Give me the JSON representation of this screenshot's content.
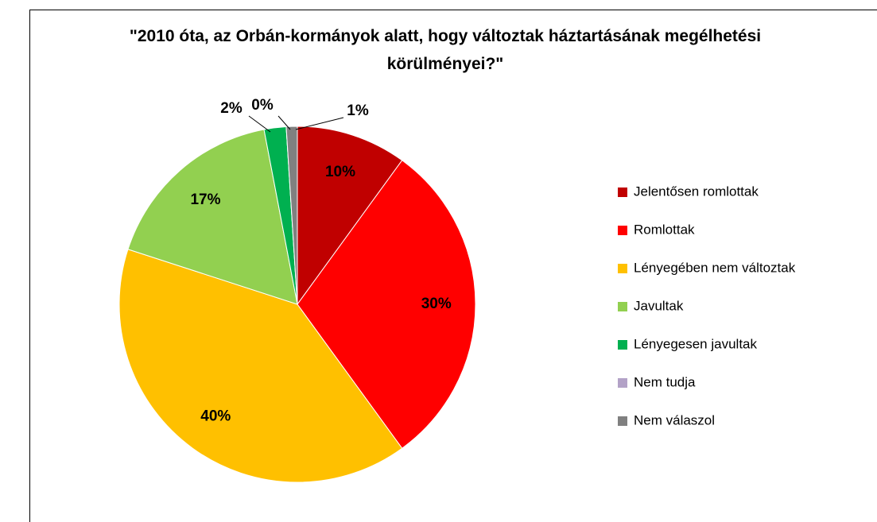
{
  "chart_data": {
    "type": "pie",
    "title": "\"2010 óta, az Orbán-kormányok alatt, hogy változtak háztartásának megélhetési körülményei?\"",
    "categories": [
      "Jelentősen romlottak",
      "Romlottak",
      "Lényegében nem változtak",
      "Javultak",
      "Lényegesen javultak",
      "Nem tudja",
      "Nem válaszol"
    ],
    "values": [
      10,
      30,
      40,
      17,
      2,
      0,
      1
    ],
    "value_labels": [
      "10%",
      "30%",
      "40%",
      "17%",
      "2%",
      "0%",
      "1%"
    ],
    "colors": [
      "#c00000",
      "#ff0000",
      "#ffc000",
      "#92d050",
      "#00b050",
      "#b3a2c7",
      "#808080"
    ],
    "legend": "right"
  }
}
